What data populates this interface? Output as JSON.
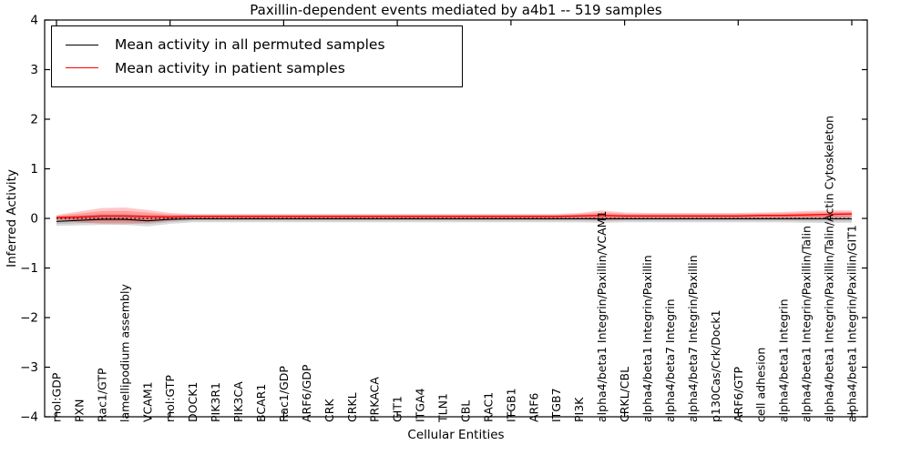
{
  "chart_data": {
    "type": "line",
    "title": "Paxillin-dependent events mediated by a4b1 -- 519 samples",
    "xlabel": "Cellular Entities",
    "ylabel": "Inferred Activity",
    "ylim": [
      -4,
      4
    ],
    "grid": false,
    "legend_position": "upper left",
    "ytick_values": [
      4,
      3,
      2,
      1,
      0,
      -1,
      -2,
      -3,
      -4
    ],
    "ytick_labels": [
      "4",
      "3",
      "2",
      "1",
      "0",
      "−1",
      "−2",
      "−3",
      "−4"
    ],
    "x_major_tick_indices": [
      0,
      5,
      10,
      15,
      20,
      25,
      30,
      35
    ],
    "categories": [
      "mol:GDP",
      "PXN",
      "Rac1/GTP",
      "lamellipodium assembly",
      "VCAM1",
      "mol:GTP",
      "DOCK1",
      "PIK3R1",
      "PIK3CA",
      "BCAR1",
      "Rac1/GDP",
      "ARF6/GDP",
      "CRK",
      "CRKL",
      "PRKACA",
      "GIT1",
      "ITGA4",
      "TLN1",
      "CBL",
      "RAC1",
      "ITGB1",
      "ARF6",
      "ITGB7",
      "PI3K",
      "alpha4/beta1 Integrin/Paxillin/VCAM1",
      "CRKL/CBL",
      "alpha4/beta1 Integrin/Paxillin",
      "alpha4/beta7 Integrin",
      "alpha4/beta7 Integrin/Paxillin",
      "p130Cas/Crk/Dock1",
      "ARF6/GTP",
      "cell adhesion",
      "alpha4/beta1 Integrin",
      "alpha4/beta1 Integrin/Paxillin/Talin",
      "alpha4/beta1 Integrin/Paxillin/Talin/Actin Cytoskeleton",
      "alpha4/beta1 Integrin/Paxillin/GIT1"
    ],
    "zero_reference_line": {
      "value": 0,
      "style": "dotted",
      "color": "#000000"
    },
    "series": [
      {
        "name": "Mean activity in all permuted samples",
        "color": "#000000",
        "band_color": "#000000",
        "values": [
          -0.06,
          -0.04,
          -0.02,
          -0.02,
          -0.05,
          -0.02,
          -0.01,
          -0.01,
          -0.01,
          -0.01,
          -0.01,
          -0.01,
          -0.01,
          -0.01,
          -0.01,
          -0.01,
          -0.01,
          -0.01,
          -0.01,
          -0.01,
          -0.01,
          -0.01,
          -0.01,
          -0.01,
          -0.01,
          -0.01,
          -0.01,
          -0.01,
          -0.01,
          -0.01,
          -0.01,
          -0.01,
          -0.01,
          -0.01,
          -0.01,
          -0.01
        ],
        "band_halfwidth": [
          0.09,
          0.1,
          0.11,
          0.11,
          0.11,
          0.09,
          0.07,
          0.07,
          0.07,
          0.07,
          0.07,
          0.07,
          0.07,
          0.07,
          0.07,
          0.07,
          0.07,
          0.07,
          0.07,
          0.07,
          0.07,
          0.07,
          0.07,
          0.07,
          0.08,
          0.07,
          0.07,
          0.07,
          0.07,
          0.07,
          0.07,
          0.07,
          0.07,
          0.08,
          0.08,
          0.08
        ]
      },
      {
        "name": "Mean activity in patient samples",
        "color": "#ff0000",
        "band_color": "#ff2a2a",
        "values": [
          0.02,
          0.03,
          0.05,
          0.05,
          0.04,
          0.03,
          0.04,
          0.04,
          0.04,
          0.04,
          0.04,
          0.04,
          0.04,
          0.04,
          0.04,
          0.04,
          0.04,
          0.04,
          0.04,
          0.04,
          0.04,
          0.04,
          0.04,
          0.05,
          0.06,
          0.05,
          0.05,
          0.05,
          0.05,
          0.05,
          0.05,
          0.06,
          0.06,
          0.07,
          0.08,
          0.09
        ],
        "band_halfwidth": [
          0.05,
          0.11,
          0.16,
          0.17,
          0.13,
          0.08,
          0.05,
          0.05,
          0.05,
          0.05,
          0.05,
          0.05,
          0.05,
          0.05,
          0.05,
          0.05,
          0.05,
          0.05,
          0.05,
          0.05,
          0.05,
          0.05,
          0.05,
          0.06,
          0.1,
          0.07,
          0.06,
          0.06,
          0.06,
          0.06,
          0.06,
          0.06,
          0.07,
          0.08,
          0.08,
          0.07
        ]
      }
    ]
  }
}
